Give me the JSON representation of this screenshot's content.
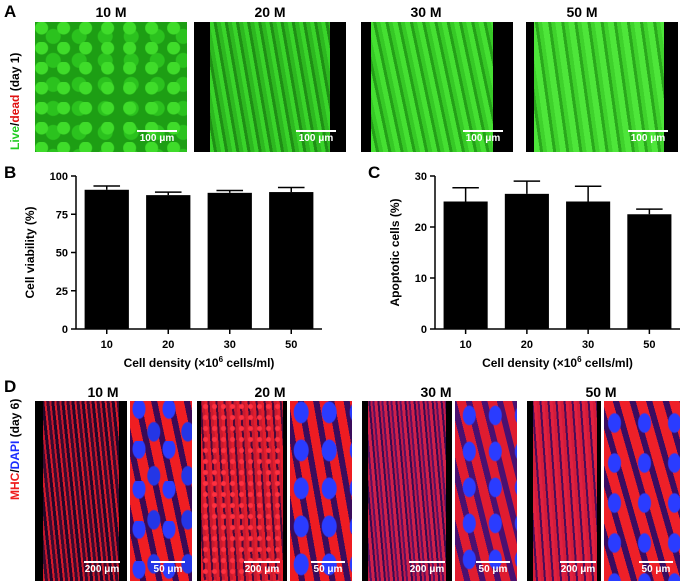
{
  "panels": {
    "a": {
      "letter": "A",
      "ylabel_live": "Live",
      "ylabel_sep": "/",
      "ylabel_dead": "dead",
      "ylabel_day": " (day 1)",
      "columns": [
        {
          "title": "10 M",
          "scale": "100 μm"
        },
        {
          "title": "20 M",
          "scale": "100 μm"
        },
        {
          "title": "30 M",
          "scale": "100 μm"
        },
        {
          "title": "50 M",
          "scale": "100 μm"
        }
      ]
    },
    "b": {
      "letter": "B"
    },
    "c": {
      "letter": "C"
    },
    "d": {
      "letter": "D",
      "ylabel_mhc": "MHC",
      "ylabel_sep": "/",
      "ylabel_dapi": "DAPI",
      "ylabel_day": " (day 6)",
      "columns": [
        {
          "title": "10 M",
          "scale_low": "200 μm",
          "scale_high": "50 μm"
        },
        {
          "title": "20 M",
          "scale_low": "200 μm",
          "scale_high": "50 μm"
        },
        {
          "title": "30 M",
          "scale_low": "200 μm",
          "scale_high": "50 μm"
        },
        {
          "title": "50 M",
          "scale_low": "200 μm",
          "scale_high": "50 μm"
        }
      ]
    }
  },
  "chart_data": [
    {
      "type": "bar",
      "categories": [
        "10",
        "20",
        "30",
        "50"
      ],
      "values": [
        91,
        87.5,
        89,
        89.5
      ],
      "errors": [
        2.5,
        2,
        1.5,
        3
      ],
      "ylabel": "Cell viability (%)",
      "xlabel_prefix": "Cell density (×10",
      "xlabel_sup": "6",
      "xlabel_suffix": " cells/ml)",
      "ylim": [
        0,
        100
      ],
      "yticks": [
        "0",
        "25",
        "50",
        "75",
        "100"
      ],
      "bar_color": "#000000"
    },
    {
      "type": "bar",
      "categories": [
        "10",
        "20",
        "30",
        "50"
      ],
      "values": [
        25,
        26.5,
        25,
        22.5
      ],
      "errors": [
        2.7,
        2.5,
        3,
        1
      ],
      "ylabel": "Apoptotic cells (%)",
      "xlabel_prefix": "Cell density (×10",
      "xlabel_sup": "6",
      "xlabel_suffix": " cells/ml)",
      "ylim": [
        0,
        30
      ],
      "yticks": [
        "0",
        "10",
        "20",
        "30"
      ],
      "bar_color": "#000000"
    }
  ],
  "colors": {
    "live_green": "#22cc22",
    "dead_red": "#e01010",
    "mhc_red": "#ee1c1c",
    "dapi_blue": "#1a2cff"
  }
}
